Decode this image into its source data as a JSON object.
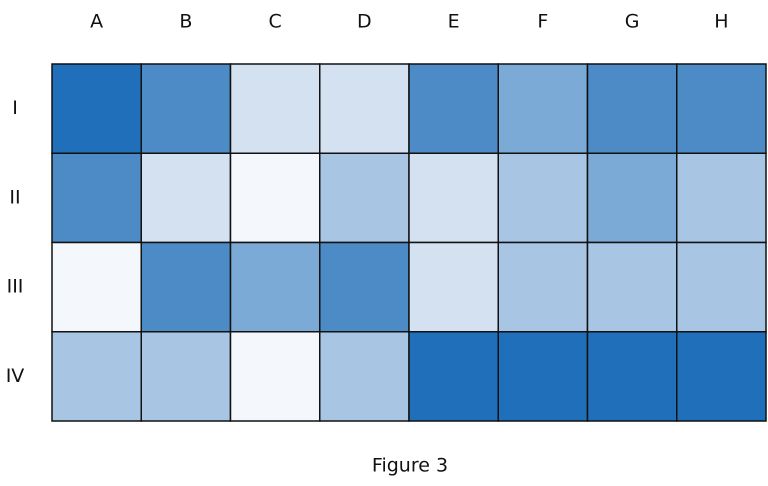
{
  "chart_data": {
    "type": "heatmap",
    "caption": "Figure 3",
    "x_categories": [
      "A",
      "B",
      "C",
      "D",
      "E",
      "F",
      "G",
      "H"
    ],
    "y_categories": [
      "I",
      "II",
      "III",
      "IV"
    ],
    "colors": [
      [
        "#206fbb",
        "#4d8bc7",
        "#d3e1f0",
        "#d3e1f0",
        "#4d8bc7",
        "#7baad6",
        "#4d8bc7",
        "#4d8bc7"
      ],
      [
        "#4d8bc7",
        "#d3e1f0",
        "#f4f7fb",
        "#a8c6e3",
        "#d3e1f0",
        "#a8c6e3",
        "#7baad6",
        "#a8c6e3"
      ],
      [
        "#f4f7fb",
        "#4d8bc7",
        "#7baad6",
        "#4d8bc7",
        "#d3e1f0",
        "#a8c6e3",
        "#a8c6e3",
        "#a8c6e3"
      ],
      [
        "#a8c6e3",
        "#a8c6e3",
        "#f4f7fb",
        "#a8c6e3",
        "#206fbb",
        "#206fbb",
        "#206fbb",
        "#206fbb"
      ]
    ]
  }
}
